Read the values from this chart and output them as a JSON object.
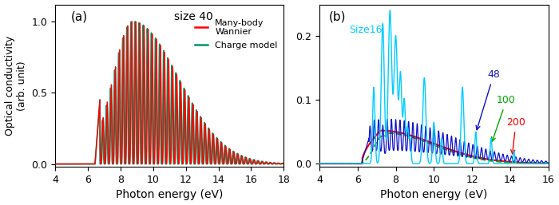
{
  "panel_a": {
    "title": "size 40",
    "xlabel": "Photon energy (eV)",
    "ylabel": "Optical conductivity\n(arb. unit)",
    "xlim": [
      4,
      18
    ],
    "ylim": [
      -0.02,
      1.12
    ],
    "yticks": [
      0,
      0.5,
      1
    ],
    "xticks": [
      4,
      6,
      8,
      10,
      12,
      14,
      16,
      18
    ],
    "onset": 6.45,
    "color_red": "#FF0000",
    "color_green": "#009966",
    "legend_many_body": "Many-body\nWannier",
    "legend_charge": "Charge model",
    "label_a": "(a)"
  },
  "panel_b": {
    "xlabel": "Photon energy (eV)",
    "xlim": [
      4,
      16
    ],
    "ylim": [
      -0.005,
      0.25
    ],
    "yticks": [
      0,
      0.1,
      0.2
    ],
    "xticks": [
      4,
      6,
      8,
      10,
      12,
      14,
      16
    ],
    "onset": 6.2,
    "color_16": "#00CCFF",
    "color_48": "#1111CC",
    "color_100": "#00AA00",
    "color_200": "#FF0000",
    "label_b": "(b)",
    "size16_label": "Size16",
    "size48_label": "48",
    "size100_label": "100",
    "size200_label": "200"
  }
}
